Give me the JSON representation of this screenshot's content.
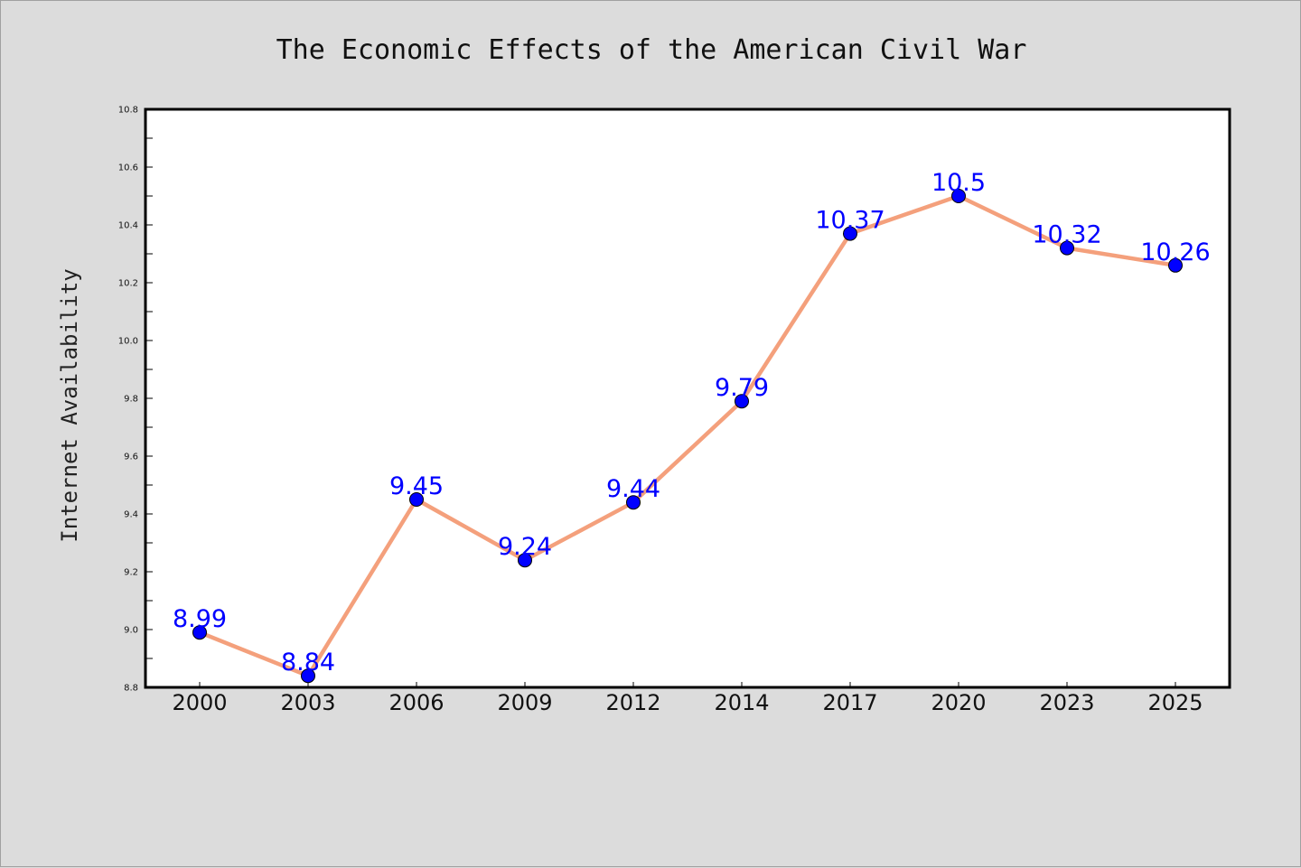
{
  "chart_data": {
    "type": "line",
    "title": "The Economic Effects of the American Civil War",
    "xlabel": "",
    "ylabel": "Internet Availability",
    "categories": [
      "2000",
      "2003",
      "2006",
      "2009",
      "2012",
      "2014",
      "2017",
      "2020",
      "2023",
      "2025"
    ],
    "series": [
      {
        "values": [
          8.99,
          8.84,
          9.45,
          9.24,
          9.44,
          9.79,
          10.37,
          10.5,
          10.32,
          10.26
        ]
      }
    ],
    "data_labels": [
      "8.99",
      "8.84",
      "9.45",
      "9.24",
      "9.44",
      "9.79",
      "10.37",
      "10.5",
      "10.32",
      "10.26"
    ],
    "ylim": [
      8.8,
      10.8
    ],
    "yticks": [
      "8.8",
      "9.0",
      "9.2",
      "9.4",
      "9.6",
      "9.8",
      "10.0",
      "10.2",
      "10.4",
      "10.6",
      "10.8"
    ],
    "grid": false,
    "legend": "none",
    "colors": {
      "line": "#f4a07c",
      "marker": "#0000ff",
      "marker_edge": "#000000",
      "labels": "#0000ff",
      "background": "#dcdcdc",
      "plot_background": "#ffffff"
    }
  }
}
